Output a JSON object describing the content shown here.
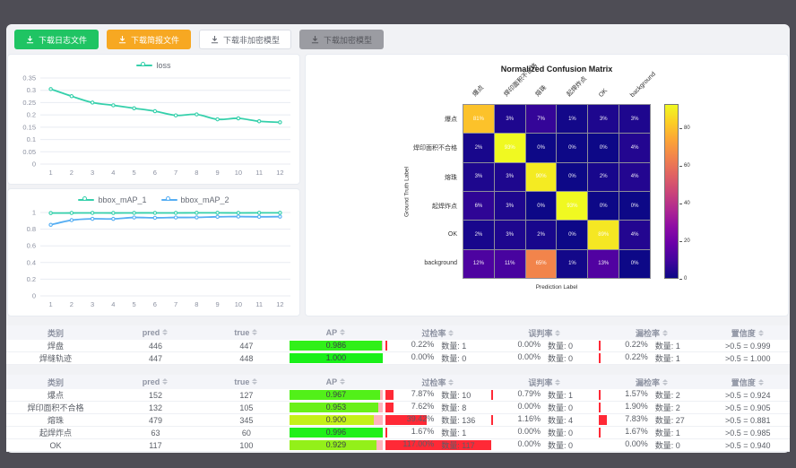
{
  "toolbar": {
    "buttons": [
      {
        "label": "下载日志文件",
        "variant": "green"
      },
      {
        "label": "下载简报文件",
        "variant": "orange"
      },
      {
        "label": "下载非加密模型",
        "variant": "plain"
      },
      {
        "label": "下载加密模型",
        "variant": "gray"
      }
    ]
  },
  "colors": {
    "series_teal": "#35d0ab",
    "series_blue": "#56aef3",
    "rate_bar_red": "#ff2936",
    "ap_remainder_pink": "#ffb4bd",
    "button_green": "#1fc463",
    "button_orange": "#f7a822"
  },
  "chart_data": [
    {
      "type": "line",
      "legend": [
        "loss"
      ],
      "legend_position": "top",
      "grid": true,
      "x": [
        1,
        2,
        3,
        4,
        5,
        6,
        7,
        8,
        9,
        10,
        11,
        12
      ],
      "series": [
        {
          "name": "loss",
          "color": "#35d0ab",
          "values": [
            0.305,
            0.276,
            0.25,
            0.239,
            0.227,
            0.215,
            0.198,
            0.202,
            0.182,
            0.186,
            0.174,
            0.17
          ]
        }
      ],
      "ylim": [
        0,
        0.35
      ],
      "yticks": [
        0,
        0.05,
        0.1,
        0.15,
        0.2,
        0.25,
        0.3,
        0.35
      ]
    },
    {
      "type": "line",
      "legend": [
        "bbox_mAP_1",
        "bbox_mAP_2"
      ],
      "legend_position": "top",
      "grid": true,
      "x": [
        1,
        2,
        3,
        4,
        5,
        6,
        7,
        8,
        9,
        10,
        11,
        12
      ],
      "series": [
        {
          "name": "bbox_mAP_1",
          "color": "#35d0ab",
          "values": [
            0.993,
            0.994,
            0.995,
            0.994,
            0.995,
            0.995,
            0.995,
            0.996,
            0.996,
            0.995,
            0.996,
            0.996
          ]
        },
        {
          "name": "bbox_mAP_2",
          "color": "#56aef3",
          "values": [
            0.852,
            0.908,
            0.924,
            0.923,
            0.94,
            0.936,
            0.94,
            0.941,
            0.948,
            0.951,
            0.948,
            0.95
          ]
        }
      ],
      "ylim": [
        0,
        1
      ],
      "yticks": [
        0,
        0.2,
        0.4,
        0.6,
        0.8,
        1
      ]
    },
    {
      "type": "heatmap",
      "title": "Normalized Confusion Matrix",
      "xlabel": "Prediction Label",
      "ylabel": "Ground Truth Label",
      "labels": [
        "爆点",
        "焊印面积不合格",
        "熔珠",
        "起焊炸点",
        "OK",
        "background"
      ],
      "matrix_percent": [
        [
          81,
          3,
          7,
          1,
          3,
          3
        ],
        [
          2,
          93,
          0,
          0,
          0,
          4
        ],
        [
          3,
          3,
          90,
          0,
          2,
          4
        ],
        [
          6,
          3,
          0,
          93,
          0,
          0
        ],
        [
          2,
          3,
          2,
          0,
          89,
          4
        ],
        [
          12,
          11,
          65,
          1,
          13,
          0
        ]
      ],
      "vmax": 93,
      "colorbar_ticks": [
        0,
        20,
        40,
        60,
        80
      ]
    }
  ],
  "tables": [
    {
      "headers": [
        "类别",
        "pred",
        "true",
        "AP",
        "过检率",
        "误判率",
        "漏检率",
        "置信度"
      ],
      "rows": [
        {
          "cls": "焊盘",
          "pred": "446",
          "true": "447",
          "ap": "0.986",
          "ap_val": 0.986,
          "over_pct": "0.22%",
          "over_cnt": "数量: 1",
          "over_ratio": 0.0022,
          "mis_pct": "0.00%",
          "mis_cnt": "数量: 0",
          "mis_ratio": 0,
          "miss_pct": "0.22%",
          "miss_cnt": "数量: 1",
          "miss_ratio": 0.0022,
          "conf": ">0.5 = 0.999"
        },
        {
          "cls": "焊缝轨迹",
          "pred": "447",
          "true": "448",
          "ap": "1.000",
          "ap_val": 1.0,
          "over_pct": "0.00%",
          "over_cnt": "数量: 0",
          "over_ratio": 0,
          "mis_pct": "0.00%",
          "mis_cnt": "数量: 0",
          "mis_ratio": 0,
          "miss_pct": "0.22%",
          "miss_cnt": "数量: 1",
          "miss_ratio": 0.0022,
          "conf": ">0.5 = 1.000"
        }
      ]
    },
    {
      "headers": [
        "类别",
        "pred",
        "true",
        "AP",
        "过检率",
        "误判率",
        "漏检率",
        "置信度"
      ],
      "rows": [
        {
          "cls": "爆点",
          "pred": "152",
          "true": "127",
          "ap": "0.967",
          "ap_val": 0.967,
          "over_pct": "7.87%",
          "over_cnt": "数量: 10",
          "over_ratio": 0.0787,
          "mis_pct": "0.79%",
          "mis_cnt": "数量: 1",
          "mis_ratio": 0.0079,
          "miss_pct": "1.57%",
          "miss_cnt": "数量: 2",
          "miss_ratio": 0.0157,
          "conf": ">0.5 = 0.924"
        },
        {
          "cls": "焊印面积不合格",
          "pred": "132",
          "true": "105",
          "ap": "0.953",
          "ap_val": 0.953,
          "over_pct": "7.62%",
          "over_cnt": "数量: 8",
          "over_ratio": 0.0762,
          "mis_pct": "0.00%",
          "mis_cnt": "数量: 0",
          "mis_ratio": 0,
          "miss_pct": "1.90%",
          "miss_cnt": "数量: 2",
          "miss_ratio": 0.019,
          "conf": ">0.5 = 0.905"
        },
        {
          "cls": "熔珠",
          "pred": "479",
          "true": "345",
          "ap": "0.900",
          "ap_val": 0.9,
          "over_pct": "39.42%",
          "over_cnt": "数量: 136",
          "over_ratio": 0.3942,
          "mis_pct": "1.16%",
          "mis_cnt": "数量: 4",
          "mis_ratio": 0.0116,
          "miss_pct": "7.83%",
          "miss_cnt": "数量: 27",
          "miss_ratio": 0.0783,
          "conf": ">0.5 = 0.881"
        },
        {
          "cls": "起焊炸点",
          "pred": "63",
          "true": "60",
          "ap": "0.996",
          "ap_val": 0.996,
          "over_pct": "1.67%",
          "over_cnt": "数量: 1",
          "over_ratio": 0.0167,
          "mis_pct": "0.00%",
          "mis_cnt": "数量: 0",
          "mis_ratio": 0,
          "miss_pct": "1.67%",
          "miss_cnt": "数量: 1",
          "miss_ratio": 0.0167,
          "conf": ">0.5 = 0.985"
        },
        {
          "cls": "OK",
          "pred": "117",
          "true": "100",
          "ap": "0.929",
          "ap_val": 0.929,
          "over_pct": "117.00%",
          "over_cnt": "数量: 117",
          "over_ratio": 1,
          "mis_pct": "0.00%",
          "mis_cnt": "数量: 0",
          "mis_ratio": 0,
          "miss_pct": "0.00%",
          "miss_cnt": "数量: 0",
          "miss_ratio": 0,
          "conf": ">0.5 = 0.940"
        }
      ]
    }
  ]
}
